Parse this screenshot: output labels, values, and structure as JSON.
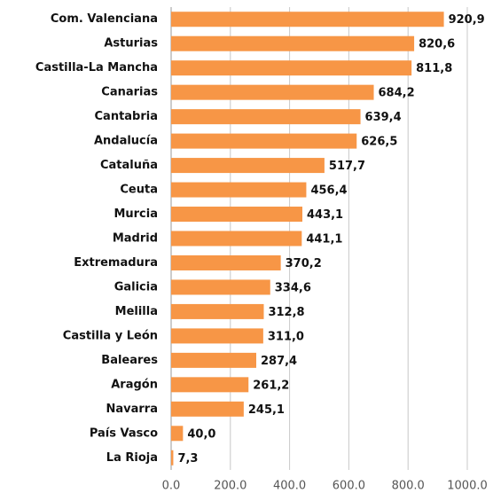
{
  "chart_data": {
    "type": "barh",
    "categories": [
      "Com. Valenciana",
      "Asturias",
      "Castilla-La Mancha",
      "Canarias",
      "Cantabria",
      "Andalucía",
      "Cataluña",
      "Ceuta",
      "Murcia",
      "Madrid",
      "Extremadura",
      "Galicia",
      "Melilla",
      "Castilla y León",
      "Baleares",
      "Aragón",
      "Navarra",
      "País Vasco",
      "La Rioja"
    ],
    "values": [
      920.9,
      820.6,
      811.8,
      684.2,
      639.4,
      626.5,
      517.7,
      456.4,
      443.1,
      441.1,
      370.2,
      334.6,
      312.8,
      311.0,
      287.4,
      261.2,
      245.1,
      40.0,
      7.3
    ],
    "value_labels": [
      "920,9",
      "820,6",
      "811,8",
      "684,2",
      "639,4",
      "626,5",
      "517,7",
      "456,4",
      "443,1",
      "441,1",
      "370,2",
      "334,6",
      "312,8",
      "311,0",
      "287,4",
      "261,2",
      "245,1",
      "40,0",
      "7,3"
    ],
    "color": "#f79646",
    "xlim": [
      0,
      1000
    ],
    "xticks": [
      {
        "value": 0,
        "label": "0.0"
      },
      {
        "value": 200,
        "label": "200.0"
      },
      {
        "value": 400,
        "label": "400.0"
      },
      {
        "value": 600,
        "label": "600.0"
      },
      {
        "value": 800,
        "label": "800.0"
      },
      {
        "value": 1000,
        "label": "1000.0"
      }
    ],
    "grid": true
  }
}
